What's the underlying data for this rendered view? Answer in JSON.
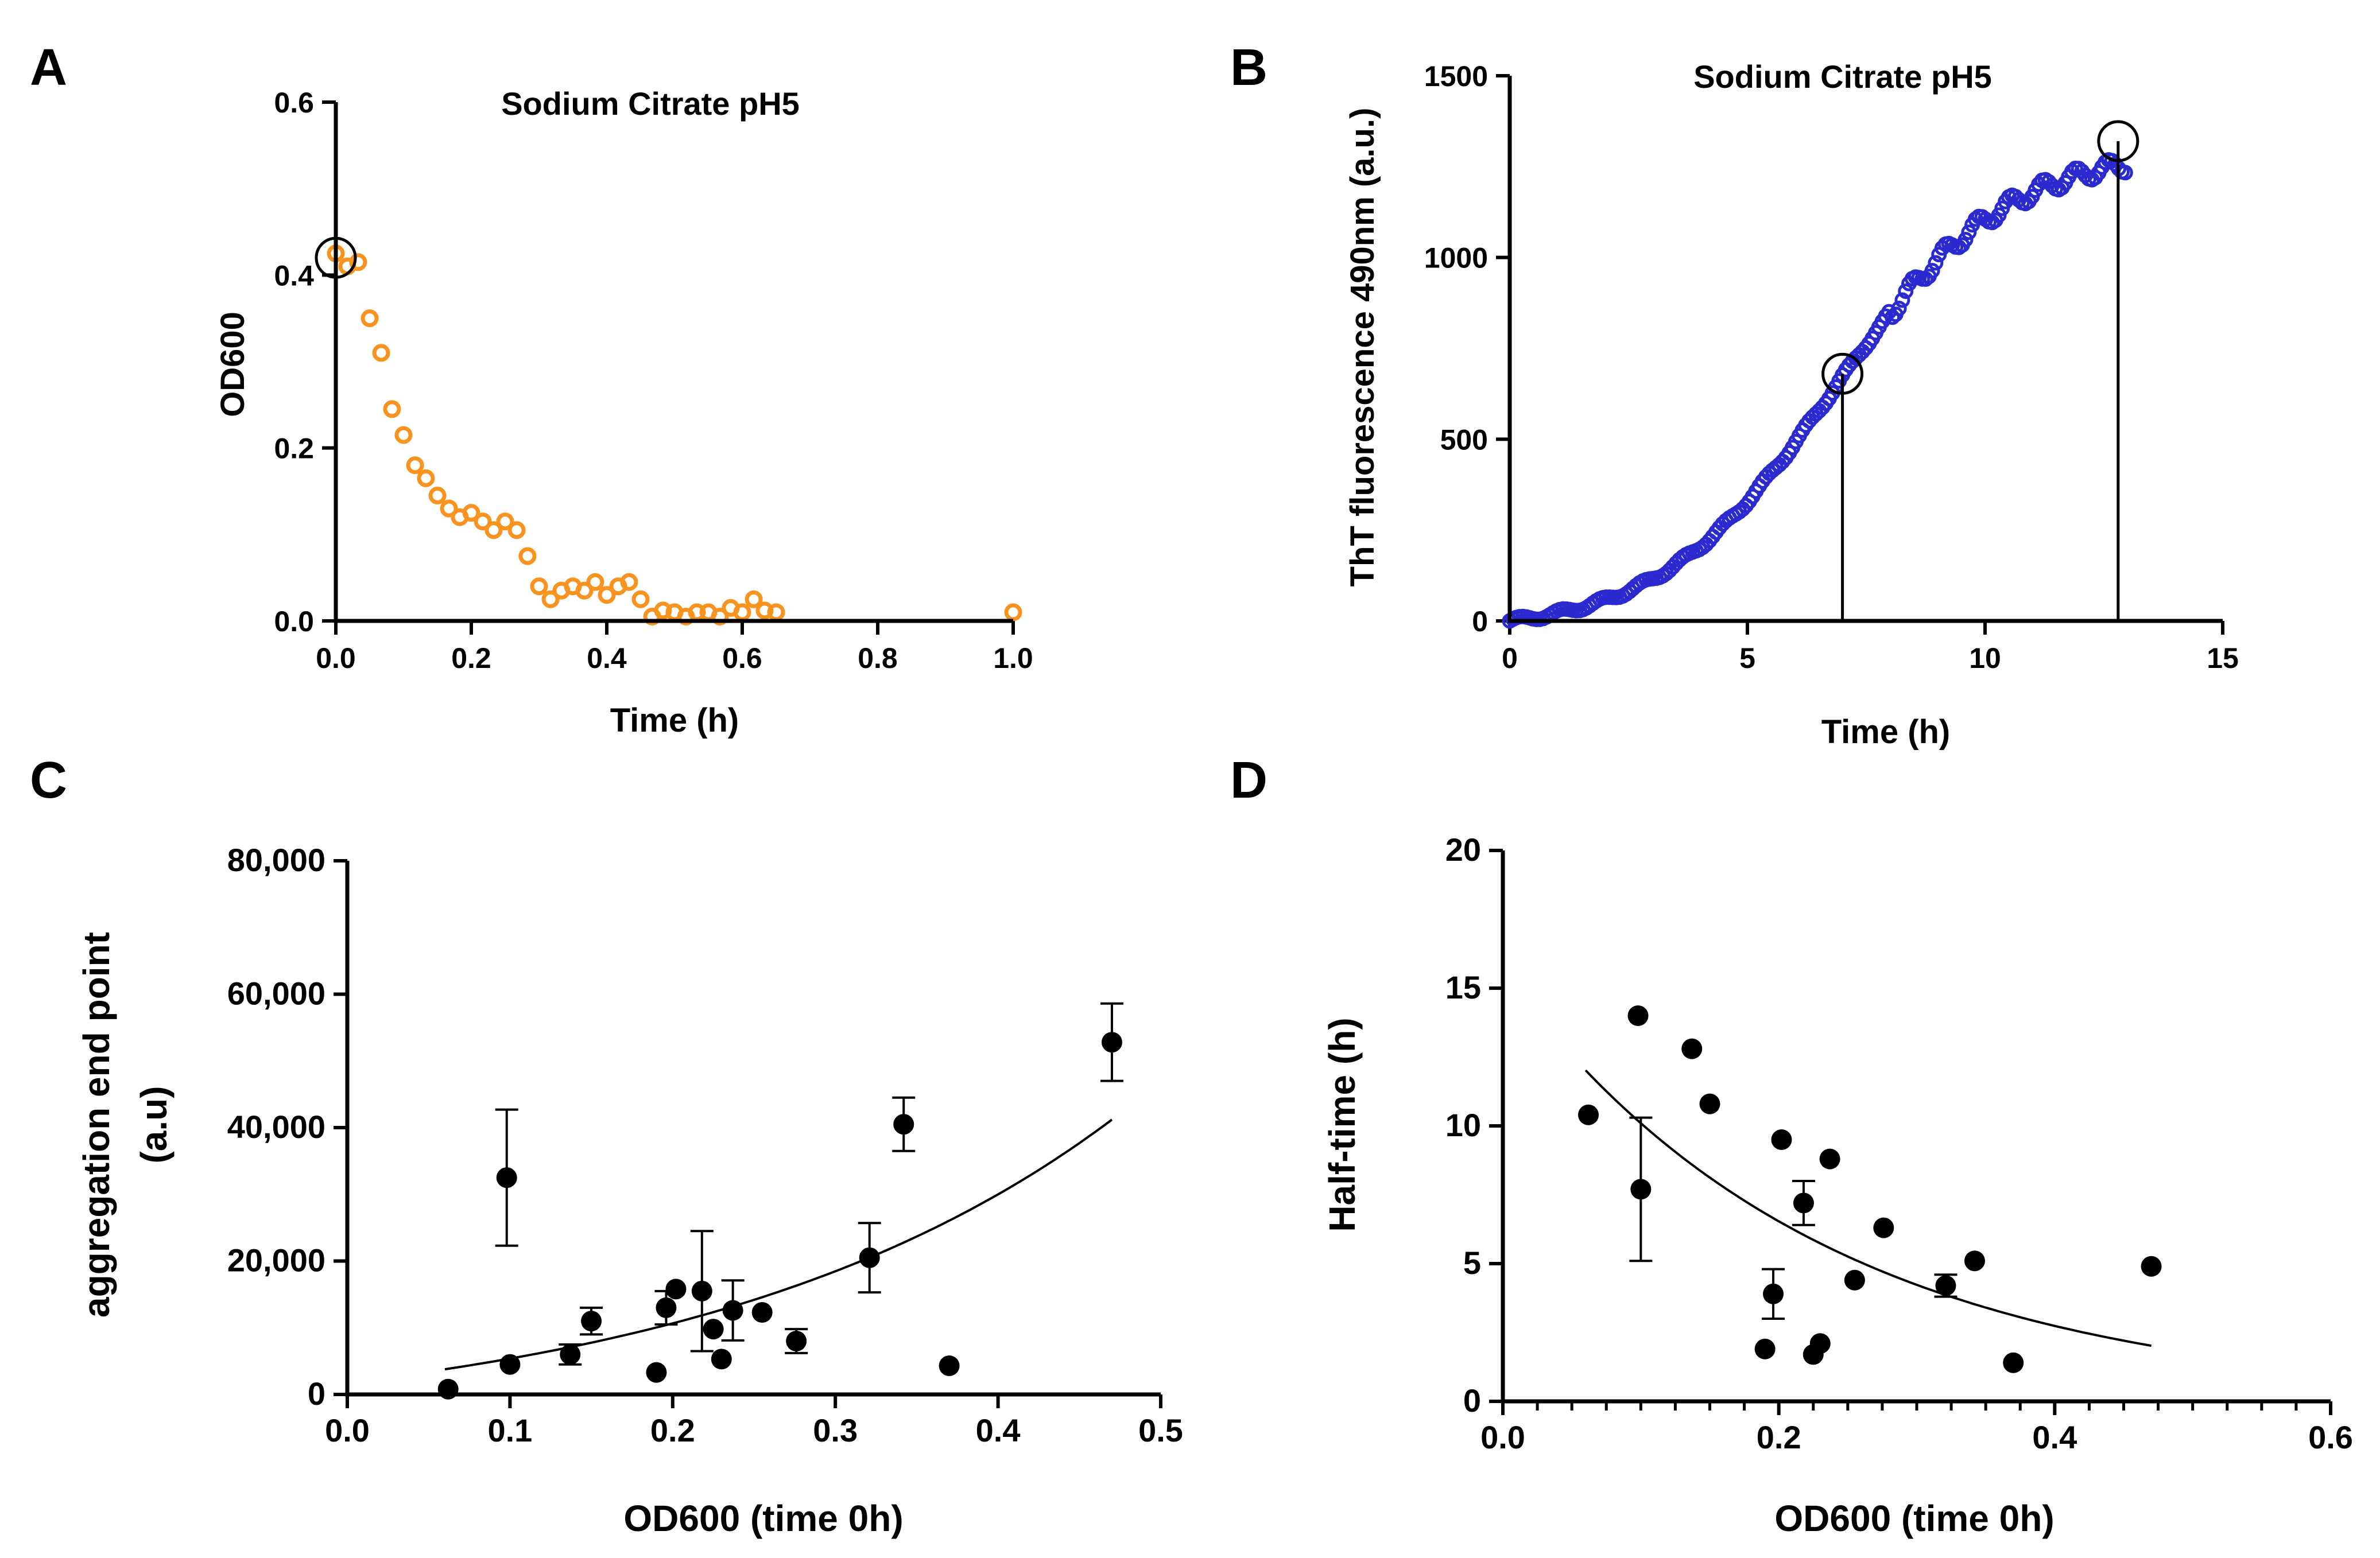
{
  "colors": {
    "orange": "#F7931E",
    "blue": "#2A2ACF",
    "black": "#000000"
  },
  "chart_data": [
    {
      "panel": "A",
      "type": "scatter",
      "title": "Sodium Citrate pH5",
      "xlabel": "Time (h)",
      "ylabel": "OD600",
      "xlim": [
        0,
        1.0
      ],
      "ylim": [
        0,
        0.6
      ],
      "xticks": [
        "0.0",
        "0.2",
        "0.4",
        "0.6",
        "0.8",
        "1.0"
      ],
      "yticks": [
        "0.0",
        "0.2",
        "0.4",
        "0.6"
      ],
      "marker": "open-circle",
      "color": "#F7931E",
      "highlight": [
        {
          "x": 0.0,
          "y": 0.42
        }
      ],
      "points": [
        {
          "x": 0.0,
          "y": 0.425
        },
        {
          "x": 0.017,
          "y": 0.41
        },
        {
          "x": 0.033,
          "y": 0.415
        },
        {
          "x": 0.05,
          "y": 0.35
        },
        {
          "x": 0.067,
          "y": 0.31
        },
        {
          "x": 0.083,
          "y": 0.245
        },
        {
          "x": 0.1,
          "y": 0.215
        },
        {
          "x": 0.117,
          "y": 0.18
        },
        {
          "x": 0.133,
          "y": 0.165
        },
        {
          "x": 0.15,
          "y": 0.145
        },
        {
          "x": 0.167,
          "y": 0.13
        },
        {
          "x": 0.183,
          "y": 0.12
        },
        {
          "x": 0.2,
          "y": 0.125
        },
        {
          "x": 0.217,
          "y": 0.115
        },
        {
          "x": 0.233,
          "y": 0.105
        },
        {
          "x": 0.25,
          "y": 0.115
        },
        {
          "x": 0.267,
          "y": 0.105
        },
        {
          "x": 0.283,
          "y": 0.075
        },
        {
          "x": 0.3,
          "y": 0.04
        },
        {
          "x": 0.317,
          "y": 0.025
        },
        {
          "x": 0.333,
          "y": 0.035
        },
        {
          "x": 0.35,
          "y": 0.04
        },
        {
          "x": 0.367,
          "y": 0.035
        },
        {
          "x": 0.383,
          "y": 0.045
        },
        {
          "x": 0.4,
          "y": 0.03
        },
        {
          "x": 0.417,
          "y": 0.04
        },
        {
          "x": 0.433,
          "y": 0.045
        },
        {
          "x": 0.45,
          "y": 0.025
        },
        {
          "x": 0.467,
          "y": 0.005
        },
        {
          "x": 0.483,
          "y": 0.012
        },
        {
          "x": 0.5,
          "y": 0.01
        },
        {
          "x": 0.517,
          "y": 0.005
        },
        {
          "x": 0.533,
          "y": 0.01
        },
        {
          "x": 0.55,
          "y": 0.01
        },
        {
          "x": 0.567,
          "y": 0.005
        },
        {
          "x": 0.583,
          "y": 0.015
        },
        {
          "x": 0.6,
          "y": 0.01
        },
        {
          "x": 0.617,
          "y": 0.025
        },
        {
          "x": 0.633,
          "y": 0.012
        },
        {
          "x": 0.65,
          "y": 0.01
        },
        {
          "x": 1.0,
          "y": 0.01
        }
      ]
    },
    {
      "panel": "B",
      "type": "scatter",
      "title": "Sodium Citrate pH5",
      "xlabel": "Time (h)",
      "ylabel": "ThT fluorescence 490nm (a.u.)",
      "xlim": [
        0,
        15
      ],
      "ylim": [
        0,
        1500
      ],
      "xticks": [
        "0",
        "5",
        "10",
        "15"
      ],
      "yticks": [
        "0",
        "500",
        "1000",
        "1500"
      ],
      "marker": "open-circle",
      "color": "#2A2ACF",
      "curve_model": "logistic",
      "curve_params": {
        "max": 1330,
        "midpoint": 6.8,
        "rate": 0.55
      },
      "curve_range": [
        0,
        13
      ],
      "dropline_x": [
        7.0,
        12.8
      ],
      "highlight": [
        {
          "x": 7.0,
          "y": 680
        },
        {
          "x": 12.8,
          "y": 1320
        }
      ]
    },
    {
      "panel": "C",
      "type": "scatter",
      "xlabel": "OD600 (time 0h)",
      "ylabel": [
        "aggregation end point",
        "(a.u)"
      ],
      "xlim": [
        0,
        0.5
      ],
      "ylim": [
        0,
        80000
      ],
      "xticks": [
        "0.0",
        "0.1",
        "0.2",
        "0.3",
        "0.4",
        "0.5"
      ],
      "yticks": [
        "0",
        "20,000",
        "40,000",
        "60,000",
        "80,000"
      ],
      "marker": "filled-circle",
      "color": "#000000",
      "fit": {
        "model": "exponential",
        "a": 7500,
        "b": 3.9,
        "c": 1800,
        "x_range": [
          0.06,
          0.47
        ]
      },
      "points": [
        {
          "x": 0.062,
          "y": 800
        },
        {
          "x": 0.098,
          "y": 32500,
          "err": 10200
        },
        {
          "x": 0.1,
          "y": 4500
        },
        {
          "x": 0.137,
          "y": 6000,
          "err": 1500
        },
        {
          "x": 0.15,
          "y": 11000,
          "err": 2000
        },
        {
          "x": 0.19,
          "y": 3300
        },
        {
          "x": 0.196,
          "y": 13000,
          "err": 2500
        },
        {
          "x": 0.202,
          "y": 15800
        },
        {
          "x": 0.218,
          "y": 15500,
          "err": 9000
        },
        {
          "x": 0.225,
          "y": 9800
        },
        {
          "x": 0.23,
          "y": 5300
        },
        {
          "x": 0.237,
          "y": 12600,
          "err": 4500
        },
        {
          "x": 0.255,
          "y": 12300
        },
        {
          "x": 0.276,
          "y": 8000,
          "err": 1800
        },
        {
          "x": 0.321,
          "y": 20500,
          "err": 5200
        },
        {
          "x": 0.342,
          "y": 40500,
          "err": 4000
        },
        {
          "x": 0.37,
          "y": 4300
        },
        {
          "x": 0.47,
          "y": 52800,
          "err": 5800
        }
      ]
    },
    {
      "panel": "D",
      "type": "scatter",
      "xlabel": "OD600 (time 0h)",
      "ylabel": "Half-time (h)",
      "xlim": [
        0,
        0.6
      ],
      "ylim": [
        0,
        20
      ],
      "xticks": [
        "0.0",
        "0.2",
        "0.4",
        "0.6"
      ],
      "yticks": [
        "0",
        "5",
        "10",
        "15",
        "20"
      ],
      "marker": "filled-circle",
      "color": "#000000",
      "fit": {
        "model": "exponential-decay",
        "a": 15.6,
        "b": 4.35,
        "x_range": [
          0.06,
          0.47
        ]
      },
      "points": [
        {
          "x": 0.062,
          "y": 10.4
        },
        {
          "x": 0.098,
          "y": 14.0
        },
        {
          "x": 0.1,
          "y": 7.7,
          "err": 2.6
        },
        {
          "x": 0.137,
          "y": 12.8
        },
        {
          "x": 0.15,
          "y": 10.8
        },
        {
          "x": 0.19,
          "y": 1.9
        },
        {
          "x": 0.196,
          "y": 3.9,
          "err": 0.9
        },
        {
          "x": 0.202,
          "y": 9.5
        },
        {
          "x": 0.218,
          "y": 7.2,
          "err": 0.8
        },
        {
          "x": 0.225,
          "y": 1.7
        },
        {
          "x": 0.23,
          "y": 2.1
        },
        {
          "x": 0.237,
          "y": 8.8
        },
        {
          "x": 0.255,
          "y": 4.4
        },
        {
          "x": 0.276,
          "y": 6.3
        },
        {
          "x": 0.321,
          "y": 4.2,
          "err": 0.4
        },
        {
          "x": 0.342,
          "y": 5.1
        },
        {
          "x": 0.37,
          "y": 1.4
        },
        {
          "x": 0.47,
          "y": 4.9
        }
      ]
    }
  ]
}
